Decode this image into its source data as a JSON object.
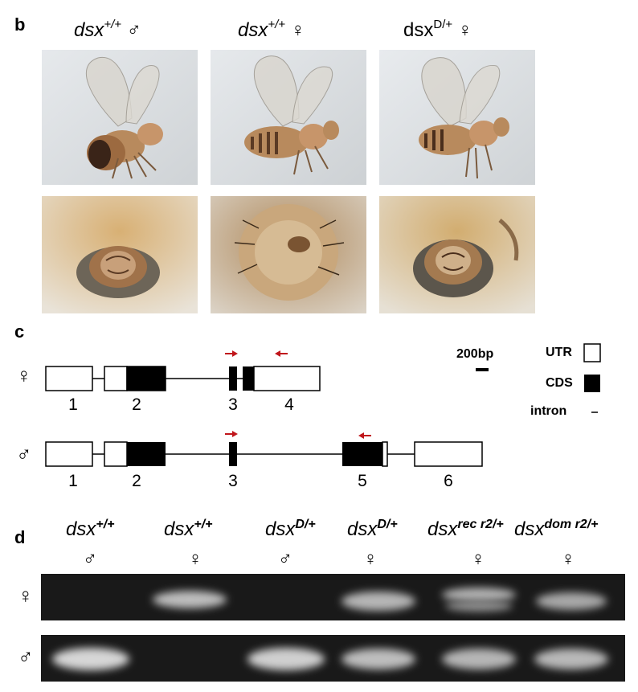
{
  "panel_b": {
    "letter": "b",
    "columns": [
      {
        "geno": "dsx",
        "sup": "+/+",
        "sex": "♂",
        "italic": true
      },
      {
        "geno": "dsx",
        "sup": "+/+",
        "sex": "♀",
        "italic": true
      },
      {
        "geno": "dsx",
        "sup": "D/+",
        "sex": "♀",
        "italic": false
      }
    ]
  },
  "panel_c": {
    "letter": "c",
    "female_symbol": "♀",
    "male_symbol": "♂",
    "female_exons": [
      "1",
      "2",
      "3",
      "4"
    ],
    "male_exons": [
      "1",
      "2",
      "3",
      "5",
      "6"
    ],
    "scale_label": "200bp",
    "legend": {
      "utr": "UTR",
      "cds": "CDS",
      "intron": "intron"
    },
    "primer_color": "#c0161b"
  },
  "panel_d": {
    "letter": "d",
    "lanes": [
      {
        "geno": "dsx",
        "sup": "+/+",
        "sex": "♂"
      },
      {
        "geno": "dsx",
        "sup": "+/+",
        "sex": "♀"
      },
      {
        "geno": "dsx",
        "sup": "D/+",
        "sex": "♂"
      },
      {
        "geno": "dsx",
        "sup": "D/+",
        "sex": "♀"
      },
      {
        "geno": "dsx",
        "sup": "rec r2/+",
        "sex": "♀"
      },
      {
        "geno": "dsx",
        "sup": "dom r2/+",
        "sex": "♀"
      }
    ],
    "row_female": "♀",
    "row_male": "♂"
  }
}
